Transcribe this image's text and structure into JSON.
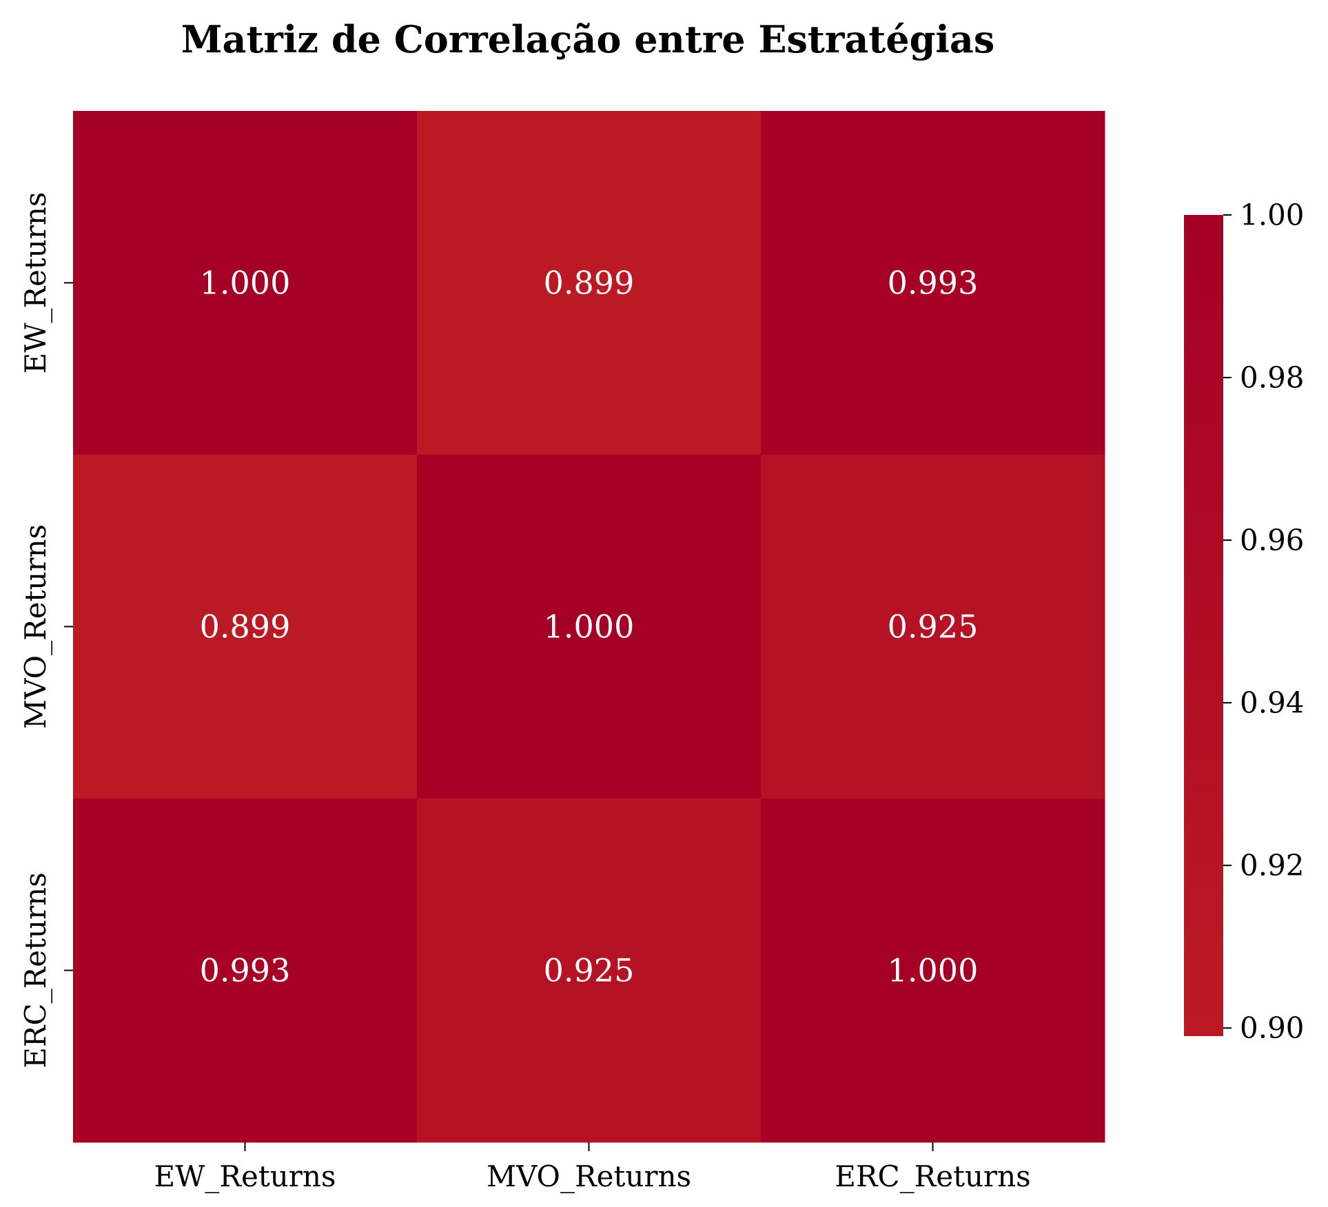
{
  "chart_data": {
    "type": "heatmap",
    "title": "Matriz de Correlação entre Estratégias",
    "xlabel": "",
    "ylabel": "",
    "x_categories": [
      "EW_Returns",
      "MVO_Returns",
      "ERC_Returns"
    ],
    "y_categories": [
      "EW_Returns",
      "MVO_Returns",
      "ERC_Returns"
    ],
    "matrix": [
      [
        1.0,
        0.899,
        0.993
      ],
      [
        0.899,
        1.0,
        0.925
      ],
      [
        0.993,
        0.925,
        1.0
      ]
    ],
    "cell_labels": [
      [
        "1.000",
        "0.899",
        "0.993"
      ],
      [
        "0.899",
        "1.000",
        "0.925"
      ],
      [
        "0.993",
        "0.925",
        "1.000"
      ]
    ],
    "colorbar": {
      "vmin": 0.899,
      "vmax": 1.0,
      "ticks": [
        1.0,
        0.98,
        0.96,
        0.94,
        0.92,
        0.9
      ],
      "tick_labels": [
        "1.00",
        "0.98",
        "0.96",
        "0.94",
        "0.92",
        "0.90"
      ],
      "color_low": "#bb1a24",
      "color_high": "#a50026"
    },
    "grid": false,
    "legend": "colorbar-right"
  }
}
